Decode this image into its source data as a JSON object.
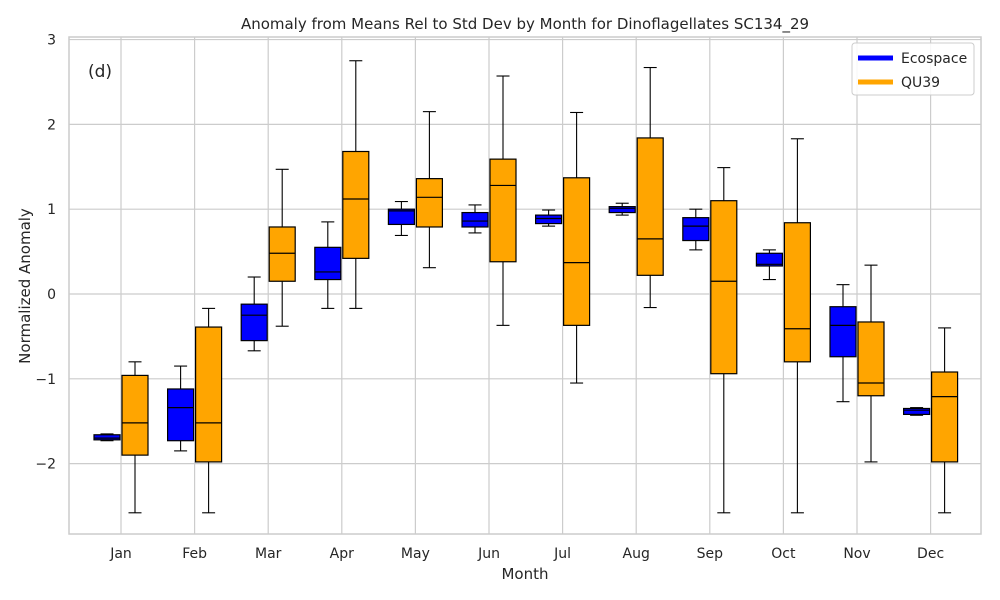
{
  "chart_data": {
    "type": "boxplot",
    "title": "Anomaly from Means Rel to Std Dev by Month for Dinoflagellates SC134_29",
    "xlabel": "Month",
    "ylabel": "Normalized Anomaly",
    "panel_label": "(d)",
    "categories": [
      "Jan",
      "Feb",
      "Mar",
      "Apr",
      "May",
      "Jun",
      "Jul",
      "Aug",
      "Sep",
      "Oct",
      "Nov",
      "Dec"
    ],
    "ylim": [
      -2.83,
      3.03
    ],
    "yticks": [
      3,
      2,
      1,
      0,
      -1,
      -2
    ],
    "ytick_labels": [
      "3",
      "2",
      "1",
      "0",
      "−1",
      "−2"
    ],
    "grid": true,
    "legend_position": "top-right",
    "series": [
      {
        "name": "Ecospace",
        "color": "#0000ff",
        "boxes": [
          {
            "min": -1.73,
            "q1": -1.72,
            "median": -1.7,
            "q3": -1.66,
            "max": -1.65
          },
          {
            "min": -1.85,
            "q1": -1.73,
            "median": -1.34,
            "q3": -1.12,
            "max": -0.85
          },
          {
            "min": -0.67,
            "q1": -0.55,
            "median": -0.25,
            "q3": -0.12,
            "max": 0.2
          },
          {
            "min": -0.17,
            "q1": 0.17,
            "median": 0.26,
            "q3": 0.55,
            "max": 0.85
          },
          {
            "min": 0.69,
            "q1": 0.82,
            "median": 0.98,
            "q3": 1.0,
            "max": 1.09
          },
          {
            "min": 0.72,
            "q1": 0.79,
            "median": 0.86,
            "q3": 0.96,
            "max": 1.05
          },
          {
            "min": 0.8,
            "q1": 0.83,
            "median": 0.89,
            "q3": 0.93,
            "max": 0.99
          },
          {
            "min": 0.93,
            "q1": 0.96,
            "median": 1.01,
            "q3": 1.03,
            "max": 1.07
          },
          {
            "min": 0.52,
            "q1": 0.63,
            "median": 0.8,
            "q3": 0.9,
            "max": 1.0
          },
          {
            "min": 0.17,
            "q1": 0.33,
            "median": 0.35,
            "q3": 0.48,
            "max": 0.52
          },
          {
            "min": -1.27,
            "q1": -0.74,
            "median": -0.37,
            "q3": -0.15,
            "max": 0.11
          },
          {
            "min": -1.43,
            "q1": -1.42,
            "median": -1.37,
            "q3": -1.35,
            "max": -1.34
          }
        ]
      },
      {
        "name": "QU39",
        "color": "#ffa500",
        "boxes": [
          {
            "min": -2.58,
            "q1": -1.9,
            "median": -1.52,
            "q3": -0.96,
            "max": -0.8
          },
          {
            "min": -2.58,
            "q1": -1.98,
            "median": -1.52,
            "q3": -0.39,
            "max": -0.17
          },
          {
            "min": -0.38,
            "q1": 0.15,
            "median": 0.48,
            "q3": 0.79,
            "max": 1.47
          },
          {
            "min": -0.17,
            "q1": 0.42,
            "median": 1.12,
            "q3": 1.68,
            "max": 2.75
          },
          {
            "min": 0.31,
            "q1": 0.79,
            "median": 1.14,
            "q3": 1.36,
            "max": 2.15
          },
          {
            "min": -0.37,
            "q1": 0.38,
            "median": 1.28,
            "q3": 1.59,
            "max": 2.57
          },
          {
            "min": -1.05,
            "q1": -0.37,
            "median": 0.37,
            "q3": 1.37,
            "max": 2.14
          },
          {
            "min": -0.16,
            "q1": 0.22,
            "median": 0.65,
            "q3": 1.84,
            "max": 2.67
          },
          {
            "min": -2.58,
            "q1": -0.94,
            "median": 0.15,
            "q3": 1.1,
            "max": 1.49
          },
          {
            "min": -2.58,
            "q1": -0.8,
            "median": -0.41,
            "q3": 0.84,
            "max": 1.83
          },
          {
            "min": -1.98,
            "q1": -1.2,
            "median": -1.05,
            "q3": -0.33,
            "max": 0.34
          },
          {
            "min": -2.58,
            "q1": -1.98,
            "median": -1.21,
            "q3": -0.92,
            "max": -0.4
          }
        ]
      }
    ]
  }
}
